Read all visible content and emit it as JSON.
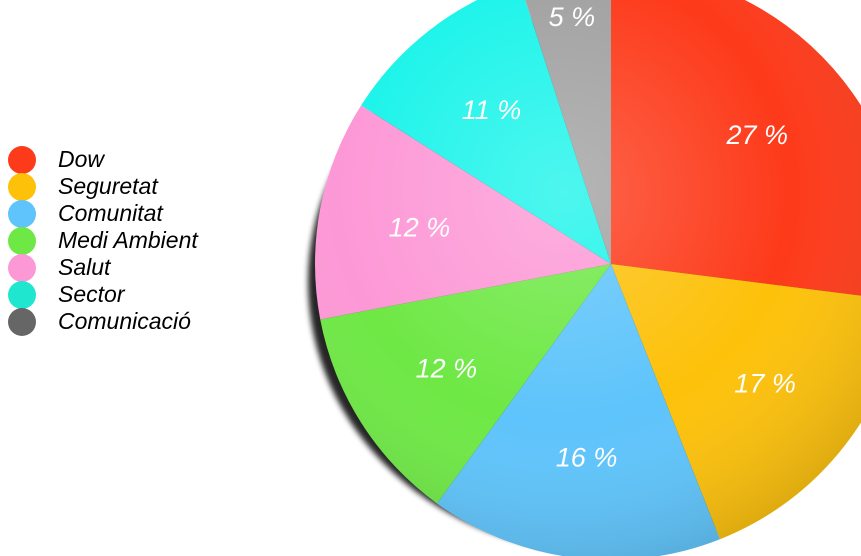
{
  "chart_data": {
    "type": "pie",
    "categories": [
      "Dow",
      "Seguretat",
      "Comunitat",
      "Medi Ambient",
      "Salut",
      "Sector",
      "Comunicació"
    ],
    "values": [
      27,
      17,
      16,
      12,
      12,
      11,
      5
    ],
    "value_labels": [
      "27 %",
      "17 %",
      "16 %",
      "12 %",
      "12 %",
      "11 %",
      "5 %"
    ],
    "colors": [
      "#fd3a1a",
      "#fdc10a",
      "#5ec4fb",
      "#6ee845",
      "#fd98d6",
      "#1cf4ea",
      "#a1a1a1"
    ],
    "legend_colors": [
      "#fd3a1a",
      "#fdc10a",
      "#5ec4fb",
      "#6ee845",
      "#fd98d6",
      "#1fe6cf",
      "#666666"
    ],
    "start": "top",
    "direction": "clockwise",
    "legend_position": "left"
  }
}
